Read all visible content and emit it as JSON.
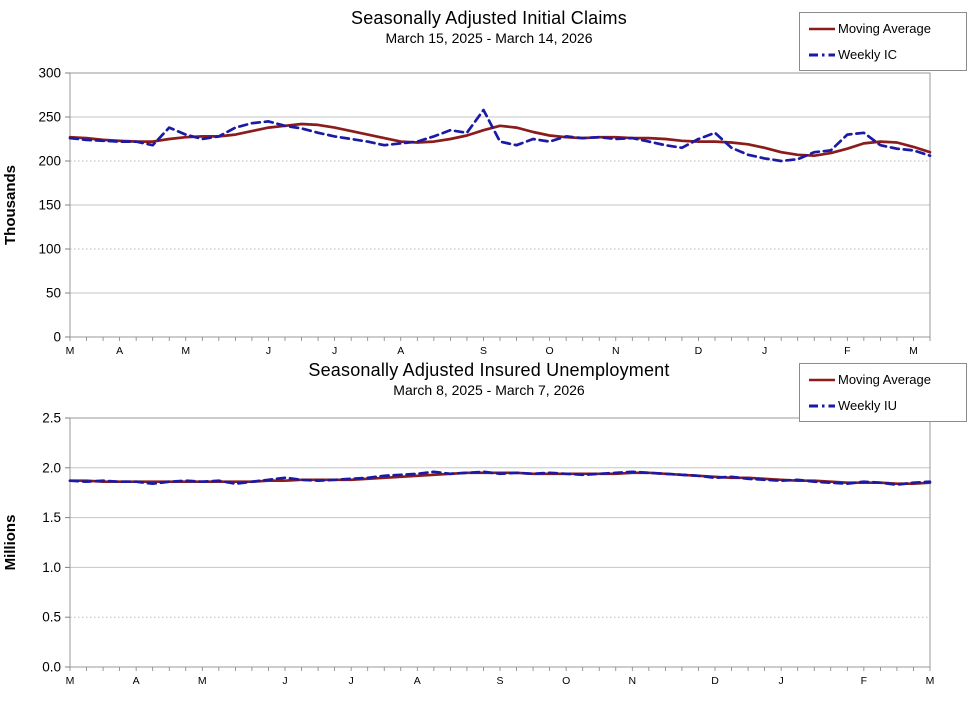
{
  "styles": {
    "grid_color": "#c6c6c6",
    "grid_dotted_color": "#b9b9b9",
    "axis_color": "#9a9a9a",
    "tick_color": "#808080",
    "text_color": "#000000",
    "legend_border": "#8c8c8c",
    "background": "#ffffff"
  },
  "chart_data": [
    {
      "type": "line",
      "title": "Seasonally Adjusted Initial Claims",
      "subtitle": "March 15, 2025 - March 14, 2026",
      "xlabel": "",
      "ylabel": "Thousands",
      "ylim": [
        0,
        300
      ],
      "grid": true,
      "legend_position": "top-right",
      "y_ticks": [
        {
          "value": 0,
          "label": "0"
        },
        {
          "value": 50,
          "label": "50",
          "grid": "solid"
        },
        {
          "value": 100,
          "label": "100",
          "grid": "dotted"
        },
        {
          "value": 150,
          "label": "150",
          "grid": "solid"
        },
        {
          "value": 200,
          "label": "200",
          "grid": "dotted"
        },
        {
          "value": 250,
          "label": "250",
          "grid": "solid"
        },
        {
          "value": 300,
          "label": "300"
        }
      ],
      "month_ticks": [
        {
          "label": "M",
          "week": 0
        },
        {
          "label": "A",
          "week": 3
        },
        {
          "label": "M",
          "week": 7
        },
        {
          "label": "J",
          "week": 12
        },
        {
          "label": "J",
          "week": 16
        },
        {
          "label": "A",
          "week": 20
        },
        {
          "label": "S",
          "week": 25
        },
        {
          "label": "O",
          "week": 29
        },
        {
          "label": "N",
          "week": 33
        },
        {
          "label": "D",
          "week": 38
        },
        {
          "label": "J",
          "week": 42
        },
        {
          "label": "F",
          "week": 47
        },
        {
          "label": "M",
          "week": 51
        }
      ],
      "series": [
        {
          "name": "Moving Average",
          "color": "#8B1C1C",
          "style": "solid",
          "values": [
            227,
            226,
            224,
            223,
            222,
            222,
            225,
            227,
            228,
            228,
            230,
            234,
            238,
            240,
            242,
            241,
            238,
            234,
            230,
            226,
            222,
            221,
            222,
            225,
            229,
            235,
            240,
            238,
            233,
            229,
            227,
            226,
            227,
            227,
            226,
            226,
            225,
            223,
            222,
            222,
            221,
            219,
            215,
            210,
            207,
            206,
            209,
            214,
            220,
            222,
            221,
            216,
            210
          ]
        },
        {
          "name": "Weekly IC",
          "color": "#1A1AA6",
          "style": "dashed",
          "values": [
            226,
            224,
            223,
            222,
            222,
            218,
            238,
            230,
            225,
            228,
            238,
            243,
            245,
            240,
            237,
            232,
            228,
            225,
            222,
            218,
            220,
            222,
            228,
            235,
            232,
            258,
            222,
            218,
            225,
            222,
            228,
            226,
            227,
            225,
            226,
            222,
            218,
            215,
            225,
            232,
            215,
            207,
            203,
            200,
            202,
            210,
            212,
            230,
            232,
            218,
            214,
            212,
            206
          ]
        }
      ]
    },
    {
      "type": "line",
      "title": "Seasonally Adjusted Insured Unemployment",
      "subtitle": "March 8, 2025 - March 7, 2026",
      "xlabel": "",
      "ylabel": "Millions",
      "ylim": [
        0,
        2.5
      ],
      "grid": true,
      "legend_position": "top-right",
      "y_ticks": [
        {
          "value": 0,
          "label": "0.0"
        },
        {
          "value": 0.5,
          "label": "0.5",
          "grid": "dotted"
        },
        {
          "value": 1.0,
          "label": "1.0",
          "grid": "solid"
        },
        {
          "value": 1.5,
          "label": "1.5",
          "grid": "solid"
        },
        {
          "value": 2.0,
          "label": "2.0",
          "grid": "solid"
        },
        {
          "value": 2.5,
          "label": "2.5"
        }
      ],
      "month_ticks": [
        {
          "label": "M",
          "week": 0
        },
        {
          "label": "A",
          "week": 4
        },
        {
          "label": "M",
          "week": 8
        },
        {
          "label": "J",
          "week": 13
        },
        {
          "label": "J",
          "week": 17
        },
        {
          "label": "A",
          "week": 21
        },
        {
          "label": "S",
          "week": 26
        },
        {
          "label": "O",
          "week": 30
        },
        {
          "label": "N",
          "week": 34
        },
        {
          "label": "D",
          "week": 39
        },
        {
          "label": "J",
          "week": 43
        },
        {
          "label": "F",
          "week": 48
        },
        {
          "label": "M",
          "week": 52
        }
      ],
      "series": [
        {
          "name": "Moving Average",
          "color": "#8B1C1C",
          "style": "solid",
          "values": [
            1.87,
            1.87,
            1.86,
            1.86,
            1.86,
            1.86,
            1.86,
            1.86,
            1.86,
            1.86,
            1.86,
            1.86,
            1.87,
            1.87,
            1.88,
            1.88,
            1.88,
            1.88,
            1.89,
            1.9,
            1.91,
            1.92,
            1.93,
            1.94,
            1.95,
            1.95,
            1.95,
            1.95,
            1.94,
            1.94,
            1.94,
            1.94,
            1.94,
            1.94,
            1.95,
            1.95,
            1.94,
            1.93,
            1.92,
            1.91,
            1.9,
            1.9,
            1.89,
            1.88,
            1.87,
            1.87,
            1.86,
            1.85,
            1.85,
            1.85,
            1.84,
            1.84,
            1.85
          ]
        },
        {
          "name": "Weekly IU",
          "color": "#1A1AA6",
          "style": "dashed",
          "values": [
            1.87,
            1.86,
            1.87,
            1.86,
            1.86,
            1.84,
            1.86,
            1.87,
            1.86,
            1.87,
            1.84,
            1.86,
            1.88,
            1.9,
            1.88,
            1.87,
            1.88,
            1.89,
            1.9,
            1.92,
            1.93,
            1.94,
            1.96,
            1.94,
            1.95,
            1.96,
            1.94,
            1.95,
            1.94,
            1.95,
            1.94,
            1.93,
            1.94,
            1.95,
            1.96,
            1.95,
            1.94,
            1.93,
            1.92,
            1.9,
            1.91,
            1.89,
            1.88,
            1.87,
            1.88,
            1.86,
            1.85,
            1.84,
            1.86,
            1.85,
            1.83,
            1.85,
            1.86
          ]
        }
      ]
    }
  ]
}
